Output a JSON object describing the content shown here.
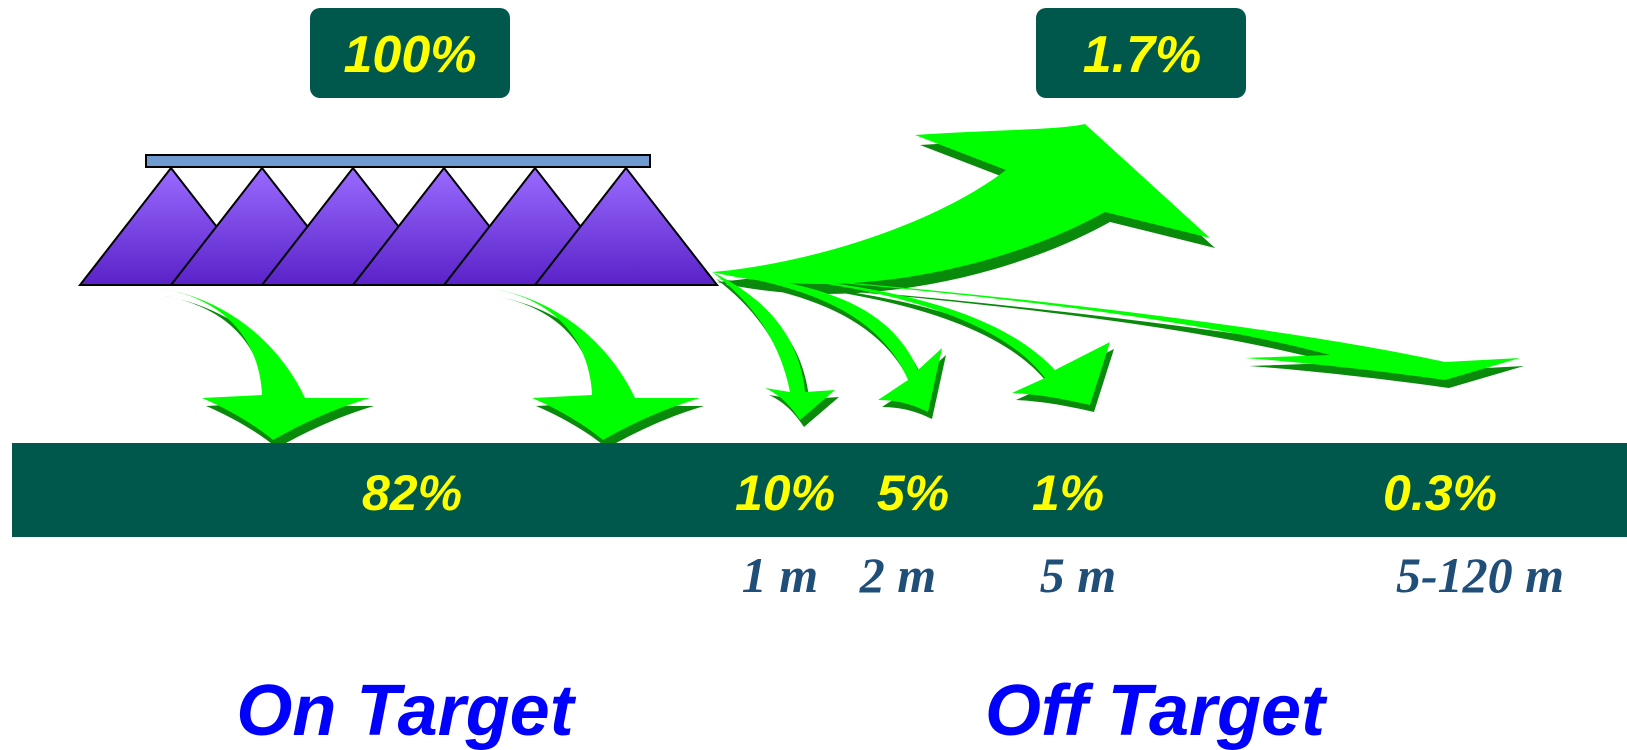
{
  "top_labels": {
    "on_target_total": "100%",
    "drift_up": "1.7%"
  },
  "ground_labels": {
    "on_target": "82%",
    "drift_1m": "10%",
    "drift_2m": "5%",
    "drift_5m": "1%",
    "drift_far": "0.3%"
  },
  "distances": {
    "d1": "1 m",
    "d2": "2 m",
    "d3": "5 m",
    "d4": "5-120 m"
  },
  "section_titles": {
    "on_target": "On Target",
    "off_target": "Off Target"
  },
  "colors": {
    "box_fill": "#00574b",
    "ground_fill": "#00574b",
    "value_text": "#ffff00",
    "distance_text": "#1f4e79",
    "title_text": "#0000ff",
    "boom": "#6f9bd1",
    "nozzle_fan": "#7b3ff2",
    "arrow": "#00ff00",
    "arrow_shadow": "#0a8a0a"
  },
  "icons": [
    "spray-boom-icon",
    "spray-fan-icon",
    "drift-arrow-icon"
  ]
}
